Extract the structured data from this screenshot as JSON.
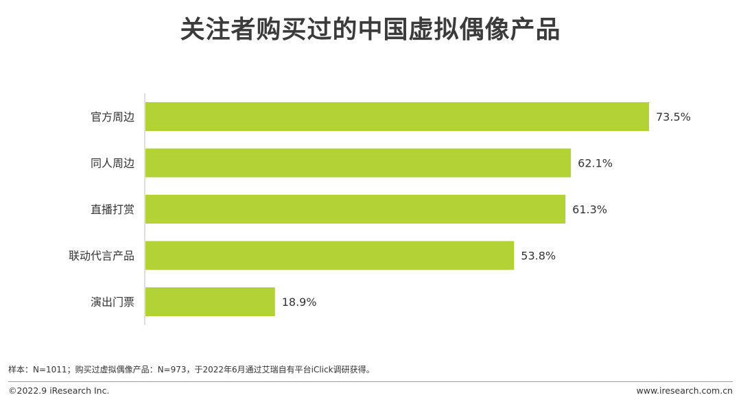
{
  "title": "关注者购买过的中国虚拟偶像产品",
  "chart_data": {
    "type": "bar",
    "orientation": "horizontal",
    "categories": [
      "官方周边",
      "同人周边",
      "直播打赏",
      "联动代言产品",
      "演出门票"
    ],
    "values": [
      73.5,
      62.1,
      61.3,
      53.8,
      18.9
    ],
    "value_labels": [
      "73.5%",
      "62.1%",
      "61.3%",
      "53.8%",
      "18.9%"
    ],
    "bar_color": "#b2d235",
    "xlim": [
      0,
      80
    ],
    "grid": false,
    "legend": "none"
  },
  "footnote": "样本：N=1011；购买过虚拟偶像产品：N=973，于2022年6月通过艾瑞自有平台iClick调研获得。",
  "copyright": "©2022.9 iResearch Inc.",
  "website": "www.iresearch.com.cn"
}
